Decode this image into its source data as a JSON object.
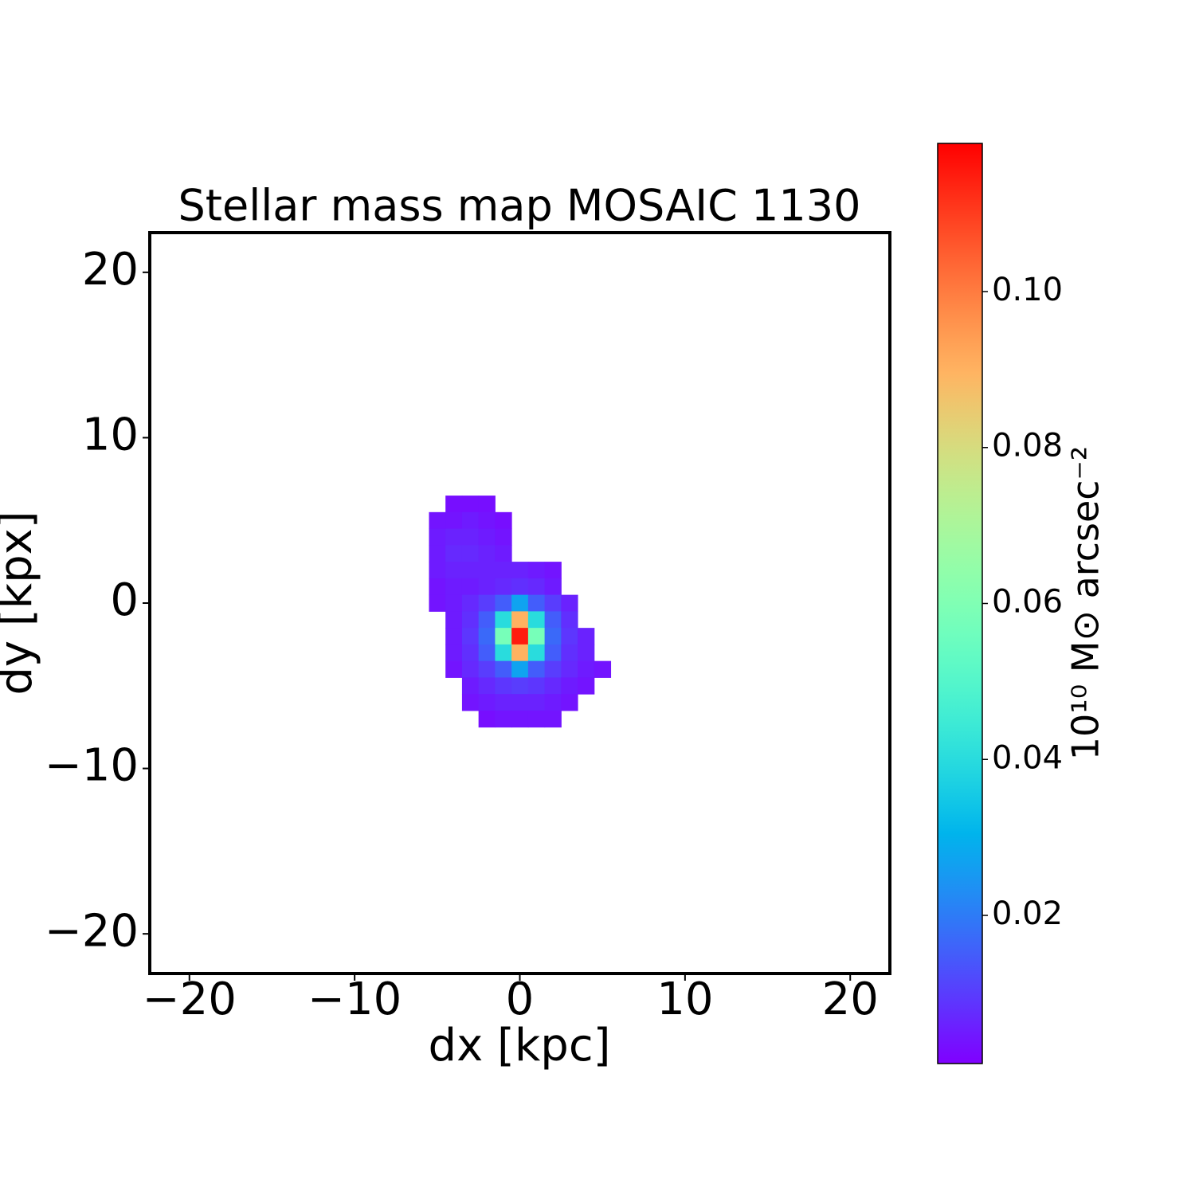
{
  "chart_data": {
    "type": "heatmap",
    "title": "Stellar mass map MOSAIC 1130",
    "x_label": "dx [kpc]",
    "y_label": "dy [kpx]",
    "colormap": "rainbow",
    "colorbar_label": "10¹⁰ M⊙ arcsec⁻²",
    "clim": [
      0.001,
      0.119
    ],
    "colorbar_ticks": [
      0.02,
      0.04,
      0.06,
      0.08,
      {
        "value": 0.1,
        "label": "0.10"
      }
    ],
    "xlim": [
      -22.4,
      22.4
    ],
    "ylim": [
      -22.4,
      22.4
    ],
    "xticks": [
      {
        "value": -20,
        "label": "−20"
      },
      {
        "value": -10,
        "label": "−10"
      },
      0,
      10,
      20
    ],
    "yticks": [
      {
        "value": -20,
        "label": "−20"
      },
      {
        "value": -10,
        "label": "−10"
      },
      0,
      10,
      20
    ],
    "xbins": [
      -5.5,
      -4.5,
      -3.5,
      -2.5,
      -1.5,
      -0.5,
      0.5,
      1.5,
      2.5,
      3.5,
      4.5,
      5.5
    ],
    "ybins": [
      6.5,
      5.5,
      4.5,
      3.5,
      2.5,
      1.5,
      0.5,
      -0.5,
      -1.5,
      -2.5,
      -3.5,
      -4.5,
      -5.5,
      -6.5,
      -7.5
    ],
    "values": [
      [
        null,
        0.003,
        0.003,
        0.003,
        null,
        null,
        null,
        null,
        null,
        null,
        null
      ],
      [
        0.004,
        0.004,
        0.005,
        0.004,
        0.003,
        null,
        null,
        null,
        null,
        null,
        null
      ],
      [
        0.005,
        0.006,
        0.006,
        0.005,
        0.004,
        null,
        null,
        null,
        null,
        null,
        null
      ],
      [
        0.005,
        0.007,
        0.007,
        0.006,
        0.005,
        null,
        null,
        null,
        null,
        null,
        null
      ],
      [
        0.005,
        0.006,
        0.006,
        0.006,
        0.006,
        0.006,
        0.005,
        0.004,
        null,
        null,
        null
      ],
      [
        0.004,
        0.005,
        0.005,
        0.006,
        0.007,
        0.008,
        0.007,
        0.005,
        null,
        null,
        null
      ],
      [
        0.004,
        0.005,
        0.007,
        0.01,
        0.015,
        0.027,
        0.015,
        0.01,
        0.006,
        null,
        null
      ],
      [
        null,
        0.005,
        0.008,
        0.015,
        0.04,
        0.09,
        0.04,
        0.015,
        0.008,
        null,
        null
      ],
      [
        null,
        0.005,
        0.009,
        0.017,
        0.058,
        0.115,
        0.058,
        0.017,
        0.009,
        0.006,
        null
      ],
      [
        null,
        0.005,
        0.008,
        0.015,
        0.04,
        0.09,
        0.04,
        0.015,
        0.008,
        0.006,
        null
      ],
      [
        null,
        0.004,
        0.007,
        0.01,
        0.015,
        0.027,
        0.015,
        0.01,
        0.007,
        0.005,
        0.004
      ],
      [
        null,
        null,
        0.005,
        0.007,
        0.009,
        0.01,
        0.009,
        0.007,
        0.005,
        0.004,
        null
      ],
      [
        null,
        null,
        0.004,
        0.005,
        0.006,
        0.006,
        0.006,
        0.005,
        0.004,
        null,
        null
      ],
      [
        null,
        null,
        null,
        0.003,
        0.004,
        0.004,
        0.004,
        0.004,
        null,
        null,
        null
      ]
    ]
  }
}
